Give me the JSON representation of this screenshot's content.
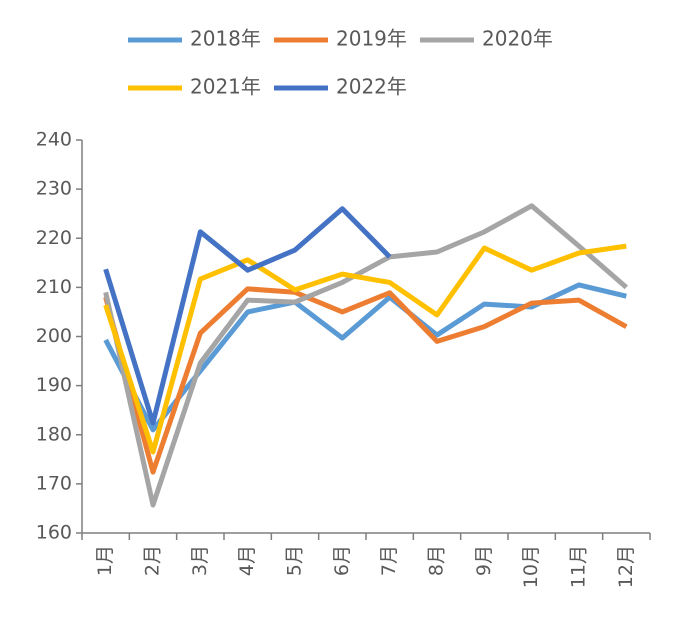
{
  "chart_data": {
    "type": "line",
    "categories": [
      "1月",
      "2月",
      "3月",
      "4月",
      "5月",
      "6月",
      "7月",
      "8月",
      "9月",
      "10月",
      "11月",
      "12月"
    ],
    "series": [
      {
        "name": "2018年",
        "color": "#5b9bd5",
        "values": [
          199.3,
          181,
          193,
          205,
          207,
          199.7,
          208,
          200.3,
          206.6,
          206,
          210.5,
          208.2
        ]
      },
      {
        "name": "2019年",
        "color": "#ed7d31",
        "values": [
          208,
          172.4,
          200.7,
          209.7,
          209,
          205,
          208.9,
          199,
          202,
          206.8,
          207.4,
          202
        ]
      },
      {
        "name": "2020年",
        "color": "#a5a5a5",
        "values": [
          209,
          165.7,
          194.6,
          207.4,
          207,
          211,
          216.2,
          217.2,
          221.3,
          226.6,
          218.4,
          210
        ]
      },
      {
        "name": "2021年",
        "color": "#ffc000",
        "values": [
          206.4,
          176.5,
          211.7,
          215.6,
          209.5,
          212.7,
          211,
          204.4,
          218,
          213.5,
          217,
          218.4
        ]
      },
      {
        "name": "2022年",
        "color": "#4472c4",
        "values": [
          213.7,
          182.4,
          221.3,
          213.5,
          217.6,
          226,
          216.2,
          null,
          null,
          null,
          null,
          null
        ]
      }
    ],
    "ylim": [
      160,
      240
    ],
    "yticks": [
      160,
      170,
      180,
      190,
      200,
      210,
      220,
      230,
      240
    ],
    "grid": false
  }
}
